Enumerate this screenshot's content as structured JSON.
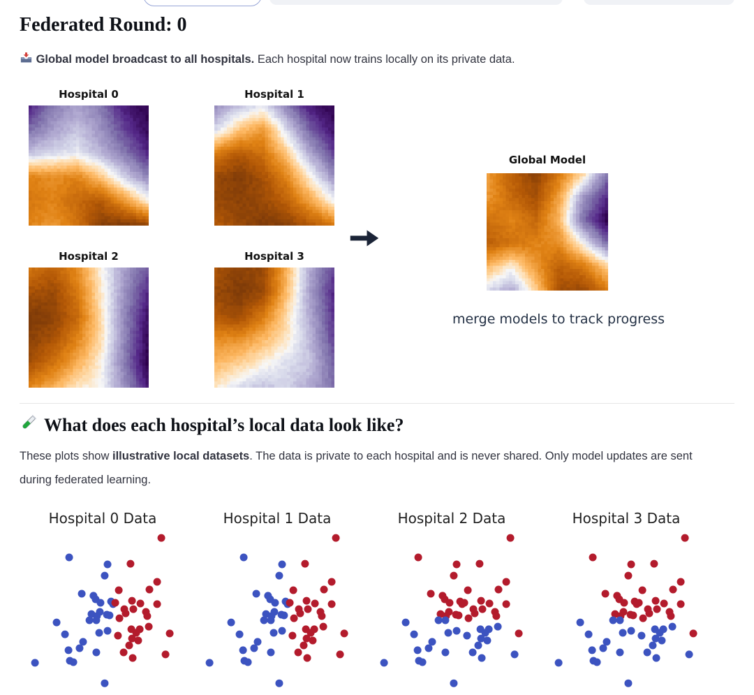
{
  "round_header": {
    "label": "Federated Round:",
    "value": "0"
  },
  "broadcast_note": {
    "icon": "inbox-tray",
    "bold_text": "Global model broadcast to all hospitals.",
    "text": "Each hospital now trains locally on its private data."
  },
  "merge_panel": {
    "arrow_icon": "arrow-right",
    "caption": "merge models to track progress"
  },
  "local_data_section": {
    "icon": "test-tube",
    "heading": "What does each hospital’s local data look like?",
    "para_pre": "These plots show ",
    "para_bold": "illustrative local datasets",
    "para_post": ". The data is private to each hospital and is never shared. Only model updates are sent during federated learning."
  },
  "top_toolbar": {
    "buttons": [
      {
        "name": "toolbar-button-1",
        "style": "outline-blue",
        "label": ""
      },
      {
        "name": "toolbar-button-2",
        "style": "filled-gray",
        "label": ""
      },
      {
        "name": "toolbar-button-3",
        "style": "filled-gray",
        "label": ""
      }
    ]
  },
  "colors": {
    "class0_blue": "#3c53c0",
    "class1_red": "#b31b2c",
    "caption_navy": "#233044",
    "heading": "#0e1117",
    "body_text": "#31333f"
  },
  "chart_data": [
    {
      "type": "heatmap",
      "title": "Hospital 0",
      "colormap": "PuOr",
      "value_range": [
        -1,
        1
      ],
      "axes_visible": false,
      "grid": [
        [
          -0.8,
          -0.5,
          -0.35,
          -0.5,
          -0.85,
          -1.0
        ],
        [
          -0.55,
          -0.35,
          -0.2,
          -0.4,
          -0.7,
          -0.95
        ],
        [
          -0.2,
          -0.1,
          -0.05,
          -0.25,
          -0.5,
          -0.8
        ],
        [
          0.55,
          0.5,
          0.55,
          0.25,
          -0.15,
          -0.45
        ],
        [
          0.6,
          0.55,
          0.7,
          0.8,
          0.45,
          0.05
        ],
        [
          0.55,
          0.45,
          0.65,
          0.95,
          1.0,
          0.9
        ]
      ]
    },
    {
      "type": "heatmap",
      "title": "Hospital 1",
      "colormap": "PuOr",
      "value_range": [
        -1,
        1
      ],
      "axes_visible": false,
      "grid": [
        [
          -0.4,
          -0.2,
          -0.05,
          -0.45,
          -0.85,
          -1.0
        ],
        [
          -0.1,
          0.25,
          0.45,
          -0.1,
          -0.6,
          -0.9
        ],
        [
          0.6,
          0.8,
          0.65,
          0.25,
          -0.3,
          -0.7
        ],
        [
          0.9,
          1.0,
          0.85,
          0.55,
          0.05,
          -0.4
        ],
        [
          0.9,
          0.95,
          0.9,
          0.75,
          0.4,
          0.0
        ],
        [
          0.8,
          0.9,
          1.0,
          0.95,
          0.8,
          0.6
        ]
      ]
    },
    {
      "type": "heatmap",
      "title": "Hospital 2",
      "colormap": "PuOr",
      "value_range": [
        -1,
        1
      ],
      "axes_visible": false,
      "grid": [
        [
          0.65,
          0.75,
          0.5,
          0.05,
          -0.35,
          -0.65
        ],
        [
          0.85,
          0.9,
          0.6,
          0.1,
          -0.4,
          -0.8
        ],
        [
          1.0,
          0.95,
          0.7,
          0.15,
          -0.45,
          -0.9
        ],
        [
          0.95,
          0.85,
          0.55,
          0.15,
          -0.45,
          -0.95
        ],
        [
          0.85,
          0.65,
          0.35,
          0.05,
          -0.5,
          -1.0
        ],
        [
          0.55,
          0.35,
          0.1,
          0.0,
          -0.4,
          -0.85
        ]
      ]
    },
    {
      "type": "heatmap",
      "title": "Hospital 3",
      "colormap": "PuOr",
      "value_range": [
        -1,
        1
      ],
      "axes_visible": false,
      "grid": [
        [
          0.85,
          0.95,
          0.9,
          0.35,
          -0.3,
          -0.7
        ],
        [
          0.9,
          1.0,
          0.9,
          0.3,
          -0.35,
          -0.8
        ],
        [
          0.8,
          0.9,
          0.6,
          0.15,
          -0.3,
          -0.75
        ],
        [
          0.5,
          0.5,
          0.3,
          0.1,
          -0.25,
          -0.7
        ],
        [
          0.3,
          0.2,
          0.05,
          -0.1,
          -0.2,
          -0.6
        ],
        [
          0.1,
          -0.1,
          -0.2,
          -0.15,
          -0.3,
          -0.55
        ]
      ]
    },
    {
      "type": "heatmap",
      "title": "Global Model",
      "colormap": "PuOr",
      "value_range": [
        -1,
        1
      ],
      "axes_visible": false,
      "grid": [
        [
          0.45,
          0.75,
          0.95,
          0.6,
          0.15,
          -0.55
        ],
        [
          0.45,
          0.7,
          0.85,
          0.4,
          -0.4,
          -0.8
        ],
        [
          0.65,
          0.55,
          0.7,
          0.3,
          -0.55,
          -1.0
        ],
        [
          0.75,
          0.65,
          0.55,
          0.5,
          0.0,
          -0.55
        ],
        [
          0.3,
          0.05,
          0.45,
          0.75,
          0.6,
          0.2
        ],
        [
          -0.1,
          -0.3,
          0.2,
          0.85,
          0.9,
          0.6
        ]
      ]
    },
    {
      "type": "scatter",
      "axes_visible": false,
      "classes": [
        {
          "label": "class-0",
          "color": "#3c53c0"
        },
        {
          "label": "class-1",
          "color": "#b31b2c"
        }
      ],
      "points": [
        [
          0.267,
          0.179
        ],
        [
          0.496,
          0.221
        ],
        [
          0.479,
          0.288
        ],
        [
          0.342,
          0.396
        ],
        [
          0.412,
          0.408
        ],
        [
          0.425,
          0.429
        ],
        [
          0.454,
          0.45
        ],
        [
          0.517,
          0.442
        ],
        [
          0.529,
          0.458
        ],
        [
          0.45,
          0.504
        ],
        [
          0.4,
          0.517
        ],
        [
          0.433,
          0.529
        ],
        [
          0.492,
          0.521
        ],
        [
          0.508,
          0.525
        ],
        [
          0.388,
          0.554
        ],
        [
          0.429,
          0.554
        ],
        [
          0.192,
          0.567
        ],
        [
          0.446,
          0.629
        ],
        [
          0.496,
          0.617
        ],
        [
          0.242,
          0.638
        ],
        [
          0.35,
          0.683
        ],
        [
          0.329,
          0.721
        ],
        [
          0.263,
          0.733
        ],
        [
          0.429,
          0.746
        ],
        [
          0.271,
          0.796
        ],
        [
          0.292,
          0.804
        ],
        [
          0.063,
          0.808
        ],
        [
          0.479,
          0.93
        ],
        [
          0.817,
          0.063
        ],
        [
          0.633,
          0.217
        ],
        [
          0.792,
          0.325
        ],
        [
          0.746,
          0.371
        ],
        [
          0.563,
          0.375
        ],
        [
          0.542,
          0.45
        ],
        [
          0.642,
          0.438
        ],
        [
          0.692,
          0.454
        ],
        [
          0.792,
          0.458
        ],
        [
          0.596,
          0.488
        ],
        [
          0.65,
          0.488
        ],
        [
          0.604,
          0.513
        ],
        [
          0.725,
          0.504
        ],
        [
          0.733,
          0.529
        ],
        [
          0.567,
          0.542
        ],
        [
          0.638,
          0.608
        ],
        [
          0.742,
          0.592
        ],
        [
          0.688,
          0.608
        ],
        [
          0.667,
          0.629
        ],
        [
          0.642,
          0.663
        ],
        [
          0.679,
          0.675
        ],
        [
          0.558,
          0.646
        ],
        [
          0.625,
          0.704
        ],
        [
          0.592,
          0.746
        ],
        [
          0.867,
          0.633
        ],
        [
          0.646,
          0.779
        ],
        [
          0.842,
          0.758
        ]
      ],
      "plots": [
        {
          "title": "Hospital 0 Data",
          "labels": [
            0,
            0,
            0,
            0,
            0,
            0,
            0,
            0,
            0,
            0,
            0,
            0,
            0,
            0,
            0,
            0,
            0,
            0,
            0,
            0,
            0,
            0,
            0,
            0,
            0,
            0,
            0,
            0,
            1,
            1,
            1,
            1,
            1,
            1,
            1,
            1,
            1,
            1,
            1,
            1,
            1,
            1,
            1,
            1,
            1,
            1,
            1,
            1,
            1,
            1,
            1,
            1,
            1,
            1,
            1
          ]
        },
        {
          "title": "Hospital 1 Data",
          "labels": [
            0,
            0,
            0,
            0,
            0,
            0,
            0,
            0,
            0,
            0,
            0,
            0,
            0,
            0,
            0,
            0,
            0,
            0,
            0,
            0,
            0,
            0,
            0,
            0,
            0,
            0,
            0,
            0,
            1,
            1,
            1,
            1,
            1,
            1,
            1,
            1,
            1,
            1,
            1,
            1,
            1,
            1,
            1,
            1,
            1,
            1,
            1,
            1,
            1,
            1,
            1,
            1,
            1,
            1,
            1
          ]
        },
        {
          "title": "Hospital 2 Data",
          "labels": [
            1,
            1,
            1,
            1,
            1,
            1,
            1,
            1,
            1,
            1,
            1,
            1,
            1,
            1,
            0,
            0,
            0,
            0,
            0,
            0,
            0,
            0,
            0,
            0,
            0,
            0,
            0,
            0,
            1,
            1,
            1,
            1,
            1,
            1,
            1,
            1,
            1,
            1,
            1,
            1,
            1,
            1,
            1,
            0,
            0,
            0,
            0,
            0,
            0,
            0,
            0,
            0,
            1,
            0,
            0
          ]
        },
        {
          "title": "Hospital 3 Data",
          "labels": [
            1,
            1,
            1,
            1,
            1,
            1,
            1,
            1,
            1,
            1,
            1,
            1,
            1,
            1,
            0,
            0,
            0,
            0,
            0,
            0,
            0,
            0,
            0,
            0,
            0,
            0,
            0,
            0,
            1,
            1,
            1,
            1,
            1,
            1,
            1,
            1,
            1,
            1,
            1,
            1,
            1,
            1,
            1,
            0,
            0,
            0,
            0,
            0,
            0,
            0,
            0,
            0,
            1,
            0,
            0
          ]
        }
      ]
    }
  ]
}
